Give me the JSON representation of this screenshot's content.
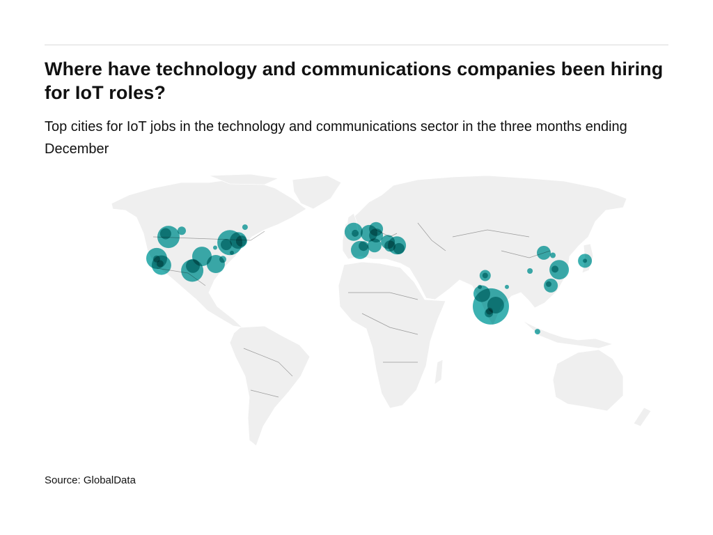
{
  "header": {
    "title": "Where have technology and communications companies been hiring for IoT roles?",
    "subtitle": "Top cities for IoT jobs in the technology and communications sector in the three months ending December"
  },
  "footer": {
    "source": "Source: GlobalData"
  },
  "colors": {
    "bubble": "#1aa3a3",
    "land": "#efefef",
    "border": "#999999"
  },
  "map": {
    "projection": "miller",
    "bubbles": [
      {
        "lon": -112.5,
        "lat": 48.1,
        "size": 16
      },
      {
        "lon": -114.2,
        "lat": 49.6,
        "size": 8
      },
      {
        "lon": -104.6,
        "lat": 51.0,
        "size": 6
      },
      {
        "lon": -119.6,
        "lat": 37.4,
        "size": 15
      },
      {
        "lon": -119.6,
        "lat": 37.1,
        "size": 5
      },
      {
        "lon": -117.5,
        "lat": 34.6,
        "size": 5
      },
      {
        "lon": -116.7,
        "lat": 33.8,
        "size": 14
      },
      {
        "lon": -92.5,
        "lat": 38.4,
        "size": 14
      },
      {
        "lon": -98.3,
        "lat": 30.8,
        "size": 16
      },
      {
        "lon": -97.9,
        "lat": 33.4,
        "size": 10
      },
      {
        "lon": -84.2,
        "lat": 34.4,
        "size": 13
      },
      {
        "lon": -80.0,
        "lat": 36.9,
        "size": 5
      },
      {
        "lon": -84.6,
        "lat": 42.9,
        "size": 3
      },
      {
        "lon": -75.8,
        "lat": 45.4,
        "size": 18
      },
      {
        "lon": -77.9,
        "lat": 44.4,
        "size": 8
      },
      {
        "lon": -70.8,
        "lat": 46.4,
        "size": 12
      },
      {
        "lon": -68.8,
        "lat": 46.1,
        "size": 8
      },
      {
        "lon": -74.6,
        "lat": 40.3,
        "size": 3
      },
      {
        "lon": -66.7,
        "lat": 52.6,
        "size": 4
      },
      {
        "lon": -1.7,
        "lat": 50.5,
        "size": 13
      },
      {
        "lon": -0.8,
        "lat": 49.8,
        "size": 5
      },
      {
        "lon": 2.1,
        "lat": 41.7,
        "size": 13
      },
      {
        "lon": 4.2,
        "lat": 43.7,
        "size": 7
      },
      {
        "lon": 7.5,
        "lat": 49.8,
        "size": 12
      },
      {
        "lon": 11.7,
        "lat": 51.8,
        "size": 10
      },
      {
        "lon": 11.7,
        "lat": 48.8,
        "size": 10
      },
      {
        "lon": 10.8,
        "lat": 44.0,
        "size": 10
      },
      {
        "lon": 18.8,
        "lat": 45.7,
        "size": 10
      },
      {
        "lon": 20.0,
        "lat": 43.7,
        "size": 8
      },
      {
        "lon": 24.2,
        "lat": 44.0,
        "size": 13
      },
      {
        "lon": 25.4,
        "lat": 42.4,
        "size": 8
      },
      {
        "lon": 112.1,
        "lat": 40.3,
        "size": 10
      },
      {
        "lon": 117.5,
        "lat": 39.0,
        "size": 4
      },
      {
        "lon": 136.7,
        "lat": 36.1,
        "size": 10
      },
      {
        "lon": 136.7,
        "lat": 36.1,
        "size": 3
      },
      {
        "lon": 103.8,
        "lat": 30.6,
        "size": 4
      },
      {
        "lon": 121.3,
        "lat": 31.3,
        "size": 14
      },
      {
        "lon": 118.8,
        "lat": 31.6,
        "size": 5
      },
      {
        "lon": 116.3,
        "lat": 22.4,
        "size": 10
      },
      {
        "lon": 115.0,
        "lat": 23.2,
        "size": 4
      },
      {
        "lon": 77.0,
        "lat": 28.1,
        "size": 8
      },
      {
        "lon": 77.0,
        "lat": 28.1,
        "size": 4
      },
      {
        "lon": 73.8,
        "lat": 21.6,
        "size": 3
      },
      {
        "lon": 90.0,
        "lat": 21.6,
        "size": 3
      },
      {
        "lon": 80.4,
        "lat": 10.1,
        "size": 26
      },
      {
        "lon": 75.0,
        "lat": 17.7,
        "size": 12
      },
      {
        "lon": 83.3,
        "lat": 10.9,
        "size": 12
      },
      {
        "lon": 79.6,
        "lat": 7.3,
        "size": 5
      },
      {
        "lon": 79.2,
        "lat": 6.1,
        "size": 6
      },
      {
        "lon": 108.3,
        "lat": -5.1,
        "size": 4
      }
    ]
  }
}
